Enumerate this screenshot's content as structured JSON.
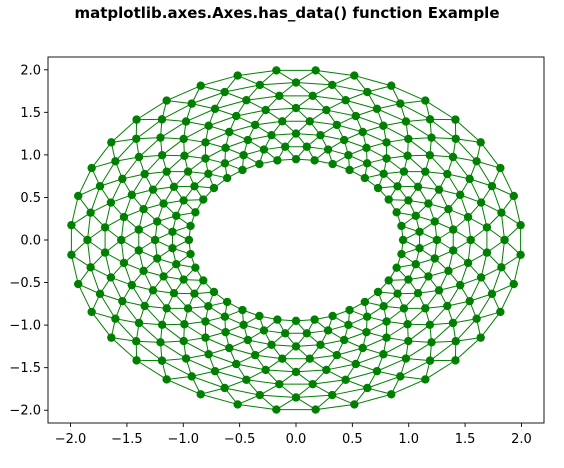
{
  "chart_data": {
    "type": "triplot",
    "title": "matplotlib.axes.Axes.has_data() function Example",
    "xlabel": "",
    "ylabel": "",
    "xlim": [
      -2.2,
      2.2
    ],
    "ylim": [
      -2.15,
      2.15
    ],
    "x_ticks": [
      -2.0,
      -1.5,
      -1.0,
      -0.5,
      0.0,
      0.5,
      1.0,
      1.5,
      2.0
    ],
    "x_tick_labels": [
      "−2.0",
      "−1.5",
      "−1.0",
      "−0.5",
      "0.0",
      "0.5",
      "1.0",
      "1.5",
      "2.0"
    ],
    "y_ticks": [
      2.0,
      1.5,
      1.0,
      0.5,
      0.0,
      -0.5,
      -1.0,
      -1.5,
      -2.0
    ],
    "y_tick_labels": [
      "2.0",
      "1.5",
      "1.0",
      "0.5",
      "0.0",
      "−0.5",
      "−1.0",
      "−1.5",
      "−2.0"
    ],
    "grid": false,
    "legend": "none",
    "marker_color": "#008000",
    "line_color": "#008000",
    "rings": {
      "count": 8,
      "points_per_ring": 36,
      "inner_radius": 0.95,
      "outer_radius": 2.0,
      "angle_offset_per_ring": "pi/36"
    }
  }
}
